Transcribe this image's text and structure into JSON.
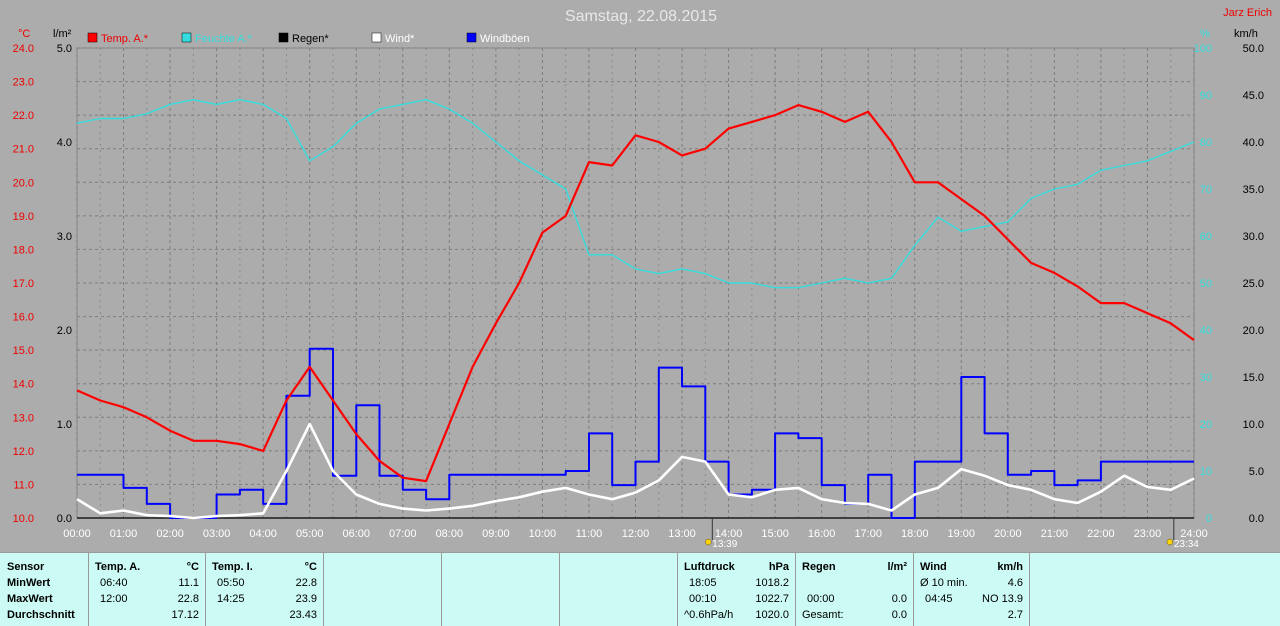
{
  "title": "Samstag, 22.08.2015",
  "author": "Jarz Erich",
  "colors": {
    "temp": "#ff0000",
    "humidity": "#33dddd",
    "rain": "#000000",
    "wind": "#ffffff",
    "gust": "#0000ff",
    "bg": "#acacac",
    "grid": "#7d7d7d"
  },
  "chart_data": {
    "type": "line",
    "title": "Samstag, 22.08.2015",
    "x": [
      "00:00",
      "00:30",
      "01:00",
      "01:30",
      "02:00",
      "02:30",
      "03:00",
      "03:30",
      "04:00",
      "04:30",
      "05:00",
      "05:30",
      "06:00",
      "06:30",
      "07:00",
      "07:30",
      "08:00",
      "08:30",
      "09:00",
      "09:30",
      "10:00",
      "10:30",
      "11:00",
      "11:30",
      "12:00",
      "12:30",
      "13:00",
      "13:30",
      "14:00",
      "14:30",
      "15:00",
      "15:30",
      "16:00",
      "16:30",
      "17:00",
      "17:30",
      "18:00",
      "18:30",
      "19:00",
      "19:30",
      "20:00",
      "20:30",
      "21:00",
      "21:30",
      "22:00",
      "22:30",
      "23:00",
      "23:30",
      "24:00"
    ],
    "axes": {
      "left_temp": {
        "unit": "°C",
        "min": 10.0,
        "max": 24.0,
        "ticks": [
          "10.0",
          "11.0",
          "12.0",
          "13.0",
          "14.0",
          "15.0",
          "16.0",
          "17.0",
          "18.0",
          "19.0",
          "20.0",
          "21.0",
          "22.0",
          "23.0",
          "24.0"
        ]
      },
      "left_rain": {
        "unit": "l/m²",
        "min": 0.0,
        "max": 5.0,
        "ticks": [
          "0.0",
          "1.0",
          "2.0",
          "3.0",
          "4.0",
          "5.0"
        ]
      },
      "right_humidity": {
        "unit": "%",
        "min": 0,
        "max": 100,
        "ticks": [
          "0",
          "10",
          "20",
          "30",
          "40",
          "50",
          "60",
          "70",
          "80",
          "90",
          "100"
        ]
      },
      "right_wind": {
        "unit": "km/h",
        "min": 0.0,
        "max": 50.0,
        "ticks": [
          "0.0",
          "5.0",
          "10.0",
          "15.0",
          "20.0",
          "25.0",
          "30.0",
          "35.0",
          "40.0",
          "45.0",
          "50.0"
        ]
      },
      "x_ticks": [
        "00:00",
        "01:00",
        "02:00",
        "03:00",
        "04:00",
        "05:00",
        "06:00",
        "07:00",
        "08:00",
        "09:00",
        "10:00",
        "11:00",
        "12:00",
        "13:00",
        "14:00",
        "15:00",
        "16:00",
        "17:00",
        "18:00",
        "19:00",
        "20:00",
        "21:00",
        "22:00",
        "23:00",
        "24:00"
      ]
    },
    "legend": [
      "Temp. A.*",
      "Feuchte A.*",
      "Regen*",
      "Wind*",
      "Windböen"
    ],
    "series": [
      {
        "name": "Temp. A.*",
        "axis": "left_temp",
        "values": [
          13.8,
          13.5,
          13.3,
          13.0,
          12.6,
          12.3,
          12.3,
          12.2,
          12.0,
          13.5,
          14.5,
          13.5,
          12.5,
          11.7,
          11.2,
          11.1,
          12.8,
          14.5,
          15.8,
          17.0,
          18.5,
          19.0,
          20.6,
          20.5,
          21.4,
          21.2,
          20.8,
          21.0,
          21.6,
          21.8,
          22.0,
          22.3,
          22.1,
          21.8,
          22.1,
          21.2,
          20.0,
          20.0,
          19.5,
          19.0,
          18.3,
          17.6,
          17.3,
          16.9,
          16.4,
          16.4,
          16.1,
          15.8,
          15.3
        ]
      },
      {
        "name": "Feuchte A.*",
        "axis": "right_humidity",
        "values": [
          84,
          85,
          85,
          86,
          88,
          89,
          88,
          89,
          88,
          85,
          76,
          79,
          84,
          87,
          88,
          89,
          87,
          84,
          80,
          76,
          73,
          70,
          56,
          56,
          53,
          52,
          53,
          52,
          50,
          50,
          49,
          49,
          50,
          51,
          50,
          51,
          58,
          64,
          61,
          62,
          63,
          68,
          70,
          71,
          74,
          75,
          76,
          78,
          80
        ]
      },
      {
        "name": "Regen*",
        "axis": "left_rain",
        "values": [
          0,
          0,
          0,
          0,
          0,
          0,
          0,
          0,
          0,
          0,
          0,
          0,
          0,
          0,
          0,
          0,
          0,
          0,
          0,
          0,
          0,
          0,
          0,
          0,
          0,
          0,
          0,
          0,
          0,
          0,
          0,
          0,
          0,
          0,
          0,
          0,
          0,
          0,
          0,
          0,
          0,
          0,
          0,
          0,
          0,
          0,
          0,
          0,
          0
        ]
      },
      {
        "name": "Wind*",
        "axis": "right_wind",
        "values": [
          2.0,
          0.5,
          0.8,
          0.3,
          0.2,
          0.0,
          0.2,
          0.3,
          0.5,
          5.0,
          10.0,
          5.0,
          2.5,
          1.5,
          1.0,
          0.8,
          1.0,
          1.3,
          1.8,
          2.2,
          2.8,
          3.2,
          2.5,
          2.0,
          2.7,
          4.0,
          6.5,
          6.0,
          2.5,
          2.2,
          3.0,
          3.2,
          2.0,
          1.6,
          1.5,
          0.8,
          2.5,
          3.2,
          5.2,
          4.5,
          3.5,
          3.0,
          2.0,
          1.6,
          2.8,
          4.5,
          3.3,
          3.0,
          4.2
        ]
      },
      {
        "name": "Windböen",
        "axis": "right_wind",
        "values": [
          4.6,
          4.6,
          3.2,
          1.5,
          0.0,
          0.0,
          2.5,
          3.0,
          1.5,
          13.0,
          18.0,
          4.5,
          12.0,
          4.5,
          3.0,
          2.0,
          4.6,
          4.6,
          4.6,
          4.6,
          4.6,
          5.0,
          9.0,
          3.5,
          6.0,
          16.0,
          14.0,
          6.0,
          2.5,
          3.0,
          9.0,
          8.5,
          3.5,
          1.5,
          4.6,
          0.0,
          6.0,
          6.0,
          15.0,
          9.0,
          4.6,
          5.0,
          3.5,
          4.0,
          6.0,
          6.0,
          6.0,
          6.0,
          6.0
        ]
      }
    ],
    "markers": [
      {
        "time": "13:39",
        "label": "13:39"
      },
      {
        "time": "23:34",
        "label": "23:34"
      }
    ]
  },
  "table": {
    "sensor": {
      "header": "Sensor",
      "rows": [
        "MinWert",
        "MaxWert",
        "Durchschnitt"
      ]
    },
    "temp_a": {
      "header": "Temp. A.",
      "unit": "°C",
      "min_time": "06:40",
      "min_val": "11.1",
      "max_time": "12:00",
      "max_val": "22.8",
      "avg": "17.12"
    },
    "temp_i": {
      "header": "Temp. I.",
      "unit": "°C",
      "min_time": "05:50",
      "min_val": "22.8",
      "max_time": "14:25",
      "max_val": "23.9",
      "avg": "23.43"
    },
    "pressure": {
      "header": "Luftdruck",
      "unit": "hPa",
      "r1_time": "18:05",
      "r1_val": "1018.2",
      "r2_time": "00:10",
      "r2_val": "1022.7",
      "r3_time": "^0.6hPa/h",
      "r3_val": "1020.0"
    },
    "rain": {
      "header": "Regen",
      "unit": "l/m²",
      "r2_time": "00:00",
      "r2_val": "0.0",
      "r3_label": "Gesamt:",
      "r3_val": "0.0"
    },
    "wind": {
      "header": "Wind",
      "unit": "km/h",
      "r1_label": "Ø 10 min.",
      "r1_val": "4.6",
      "r2_time": "04:45",
      "r2_val": "NO 13.9",
      "r3_val": "2.7"
    }
  }
}
